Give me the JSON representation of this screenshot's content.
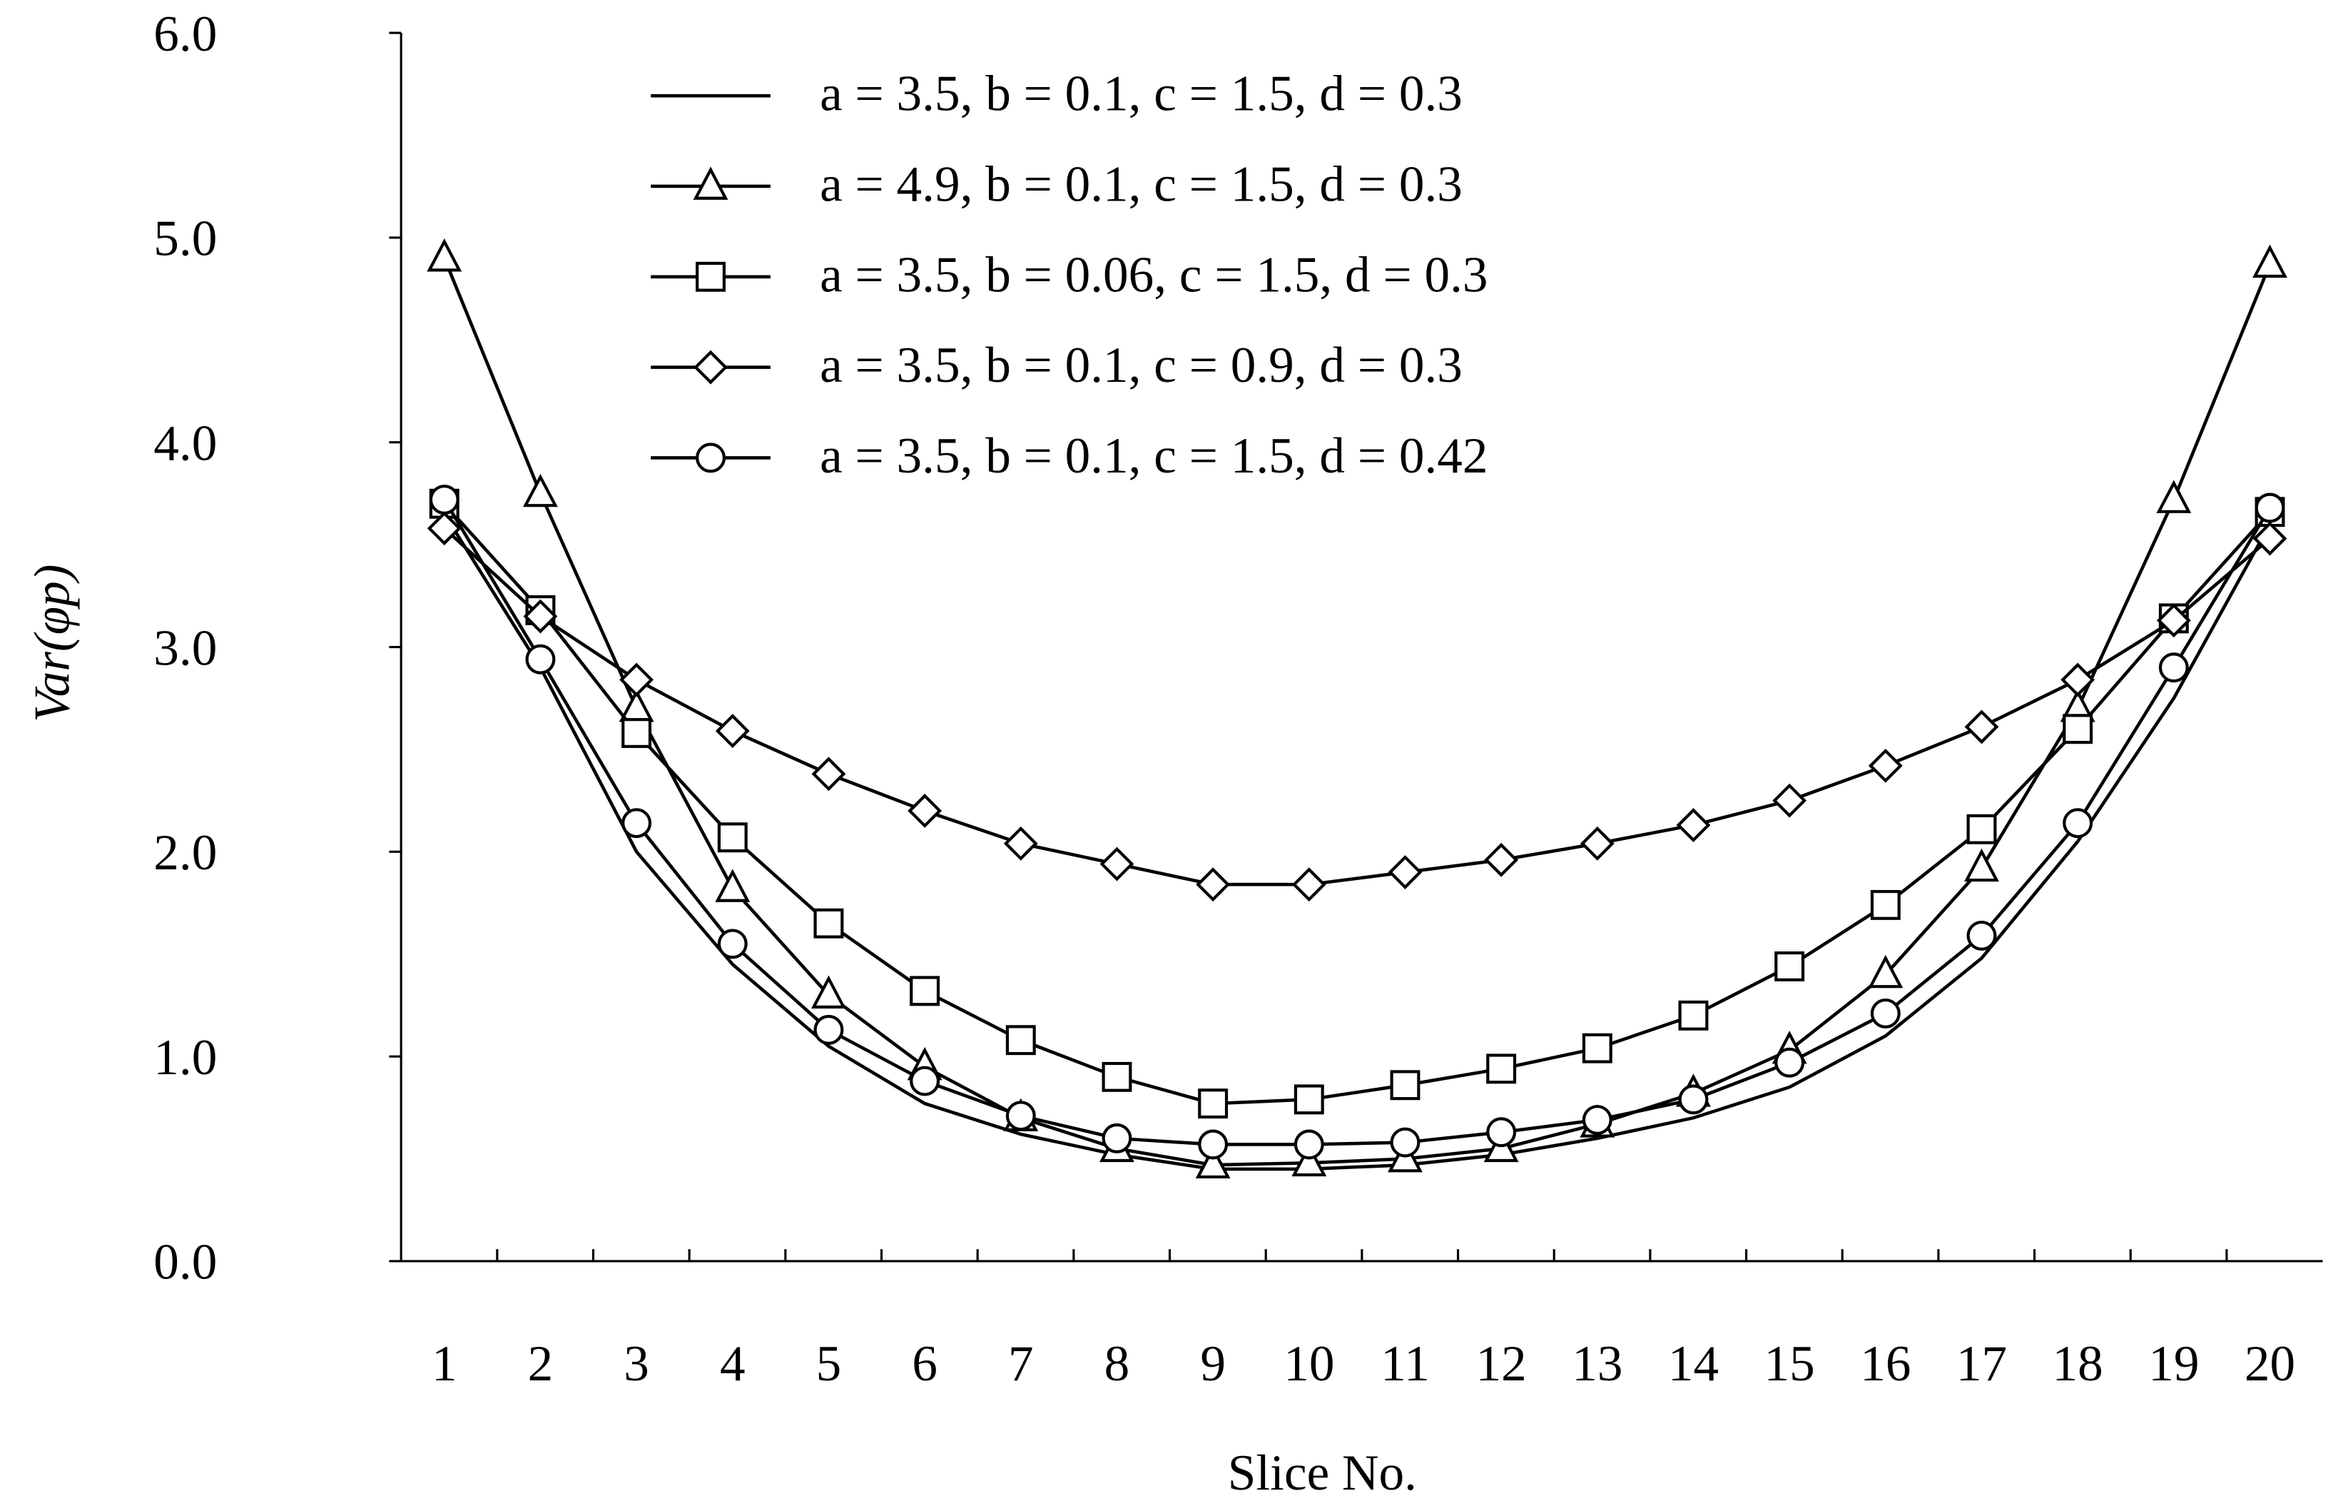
{
  "chart_data": {
    "type": "line",
    "x_label": "Slice No.",
    "y_label": "Var(φp)",
    "categories": [
      "1",
      "2",
      "3",
      "4",
      "5",
      "6",
      "7",
      "8",
      "9",
      "10",
      "11",
      "12",
      "13",
      "14",
      "15",
      "16",
      "17",
      "18",
      "19",
      "20"
    ],
    "ylim": [
      0,
      6
    ],
    "yticks": [
      {
        "value": 0,
        "label": "0.0"
      },
      {
        "value": 1,
        "label": "1.0"
      },
      {
        "value": 2,
        "label": "2.0"
      },
      {
        "value": 3,
        "label": "3.0"
      },
      {
        "value": 4,
        "label": "4.0"
      },
      {
        "value": 5,
        "label": "5.0"
      },
      {
        "value": 6,
        "label": "6.0"
      }
    ],
    "grid": false,
    "legend": "upper center",
    "series": [
      {
        "name": "a = 3.5, b = 0.1, c = 1.5, d = 0.3",
        "color": "#000000",
        "marker": "none",
        "values": [
          3.65,
          2.9,
          2.0,
          1.45,
          1.05,
          0.77,
          0.62,
          0.52,
          0.45,
          0.45,
          0.47,
          0.52,
          0.6,
          0.7,
          0.85,
          1.1,
          1.48,
          2.05,
          2.75,
          3.6
        ]
      },
      {
        "name": "a = 4.9, b = 0.1, c = 1.5, d = 0.3",
        "color": "#000000",
        "marker": "triangle",
        "values": [
          4.9,
          3.75,
          2.7,
          1.82,
          1.3,
          0.95,
          0.7,
          0.55,
          0.47,
          0.48,
          0.5,
          0.55,
          0.67,
          0.82,
          1.03,
          1.4,
          1.92,
          2.7,
          3.72,
          4.87
        ]
      },
      {
        "name": "a = 3.5, b = 0.06, c = 1.5, d = 0.3",
        "color": "#000000",
        "marker": "square",
        "values": [
          3.7,
          3.18,
          2.58,
          2.07,
          1.65,
          1.32,
          1.08,
          0.9,
          0.77,
          0.79,
          0.86,
          0.94,
          1.04,
          1.2,
          1.44,
          1.74,
          2.11,
          2.6,
          3.14,
          3.66
        ]
      },
      {
        "name": "a = 3.5, b = 0.1, c = 0.9, d = 0.3",
        "color": "#000000",
        "marker": "diamond",
        "values": [
          3.58,
          3.15,
          2.84,
          2.59,
          2.38,
          2.2,
          2.04,
          1.94,
          1.84,
          1.84,
          1.9,
          1.96,
          2.04,
          2.13,
          2.25,
          2.42,
          2.61,
          2.84,
          3.13,
          3.53
        ]
      },
      {
        "name": "a = 3.5, b = 0.1, c = 1.5, d = 0.42",
        "color": "#000000",
        "marker": "circle",
        "values": [
          3.72,
          2.94,
          2.14,
          1.55,
          1.13,
          0.88,
          0.71,
          0.6,
          0.57,
          0.57,
          0.58,
          0.63,
          0.69,
          0.79,
          0.97,
          1.21,
          1.59,
          2.14,
          2.9,
          3.68
        ]
      }
    ]
  }
}
